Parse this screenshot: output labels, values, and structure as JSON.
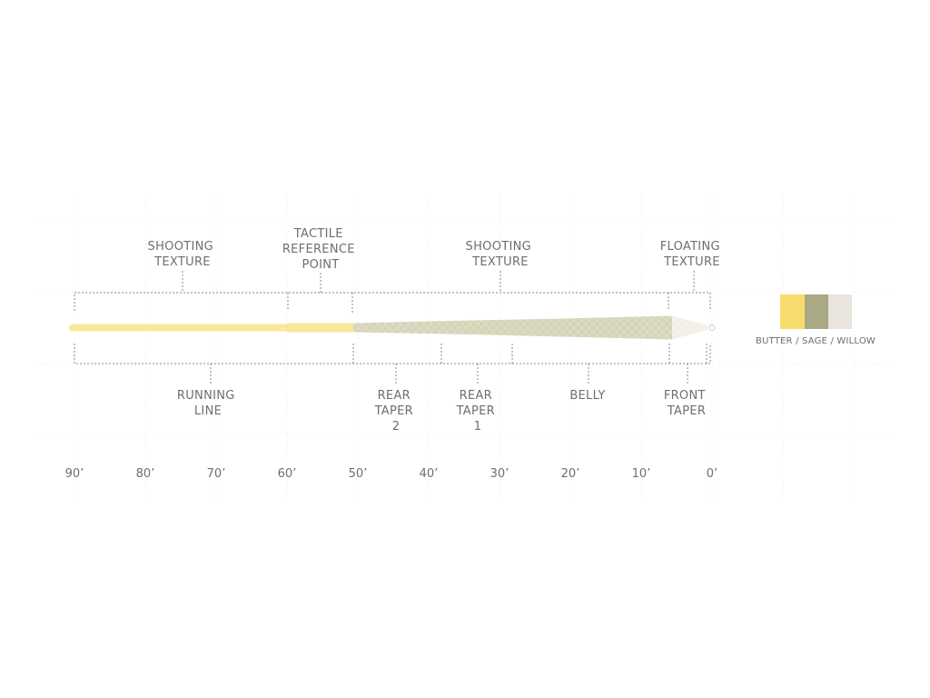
{
  "top_labels": [
    {
      "lines": [
        "SHOOTING",
        "TEXTURE"
      ]
    },
    {
      "lines": [
        "TACTILE",
        "REFERENCE",
        "POINT"
      ]
    },
    {
      "lines": [
        "SHOOTING",
        "TEXTURE"
      ]
    },
    {
      "lines": [
        "FLOATING",
        "TEXTURE"
      ]
    }
  ],
  "bottom_labels": [
    {
      "lines": [
        "RUNNING",
        "LINE"
      ]
    },
    {
      "lines": [
        "REAR",
        "TAPER",
        "2"
      ]
    },
    {
      "lines": [
        "REAR",
        "TAPER",
        "1"
      ]
    },
    {
      "lines": [
        "BELLY"
      ]
    },
    {
      "lines": [
        "FRONT",
        "TAPER"
      ]
    }
  ],
  "scale": {
    "ticks": [
      "90’",
      "80’",
      "70’",
      "60’",
      "50’",
      "40’",
      "30’",
      "20’",
      "10’",
      "0’"
    ]
  },
  "colors": {
    "butter": "#f9dc6e",
    "sage": "#a9a985",
    "willow": "#e9e5dc",
    "running_line": "#fbe79a",
    "head": "#d6d4b8",
    "tip": "#f2efe6"
  },
  "legend": {
    "label": "BUTTER / SAGE / WILLOW"
  }
}
